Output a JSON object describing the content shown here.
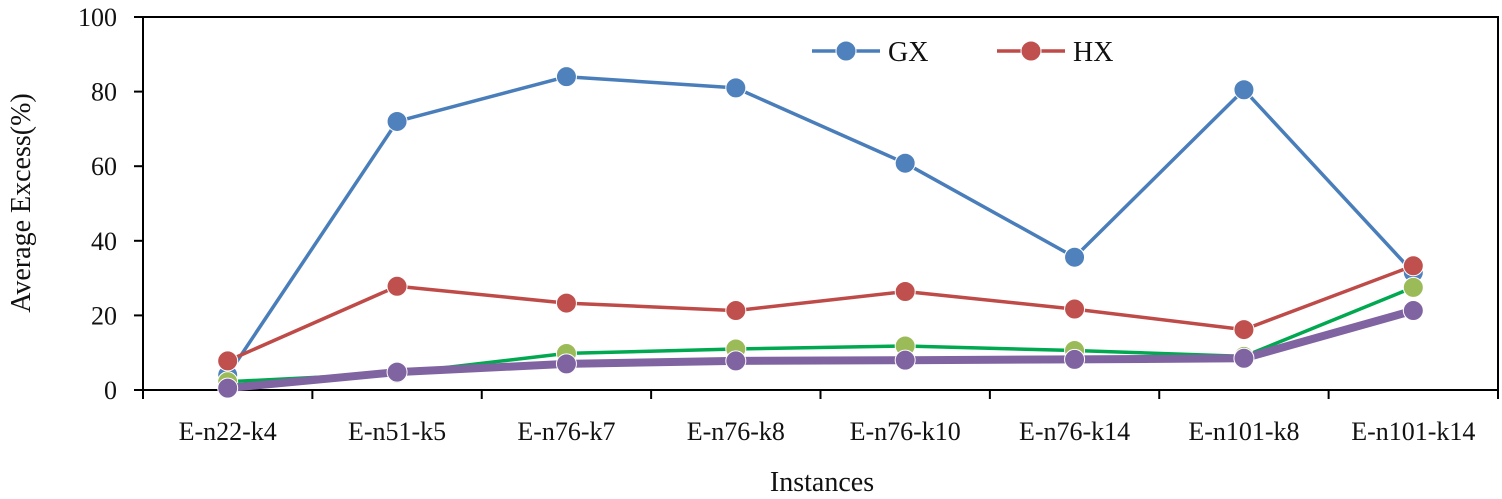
{
  "chart_data": {
    "type": "line",
    "title": "",
    "xlabel": "Instances",
    "ylabel": "Average Excess(%)",
    "ylim": [
      0,
      100
    ],
    "yticks": [
      "0",
      "20",
      "40",
      "60",
      "80",
      "100"
    ],
    "grid": false,
    "legend_position": "top",
    "categories": [
      "E-n22-k4",
      "E-n51-k5",
      "E-n76-k7",
      "E-n76-k8",
      "E-n76-k10",
      "E-n76-k14",
      "E-n101-k8",
      "E-n101-k14"
    ],
    "series": [
      {
        "name": "GX",
        "show_in_legend": true,
        "line_color": "#4a7ebb",
        "marker_color": "#4f81bd",
        "emphasis": "normal",
        "values": [
          4.0,
          72.0,
          84.0,
          81.0,
          60.8,
          35.6,
          80.5,
          31.5
        ]
      },
      {
        "name": "HX",
        "show_in_legend": true,
        "line_color": "#be4b48",
        "marker_color": "#c0504d",
        "emphasis": "normal",
        "values": [
          7.8,
          27.8,
          23.3,
          21.3,
          26.4,
          21.7,
          16.2,
          33.3
        ]
      },
      {
        "name": "",
        "show_in_legend": false,
        "line_color": "#00a850",
        "marker_color": "#9bbb59",
        "emphasis": "normal",
        "values": [
          2.2,
          4.5,
          9.8,
          11.0,
          11.8,
          10.6,
          9.0,
          27.5
        ]
      },
      {
        "name": "",
        "show_in_legend": false,
        "line_color": "#8064a2",
        "marker_color": "#8064a2",
        "emphasis": "thick",
        "values": [
          0.5,
          4.8,
          7.0,
          7.8,
          8.0,
          8.2,
          8.5,
          21.3
        ]
      }
    ]
  }
}
